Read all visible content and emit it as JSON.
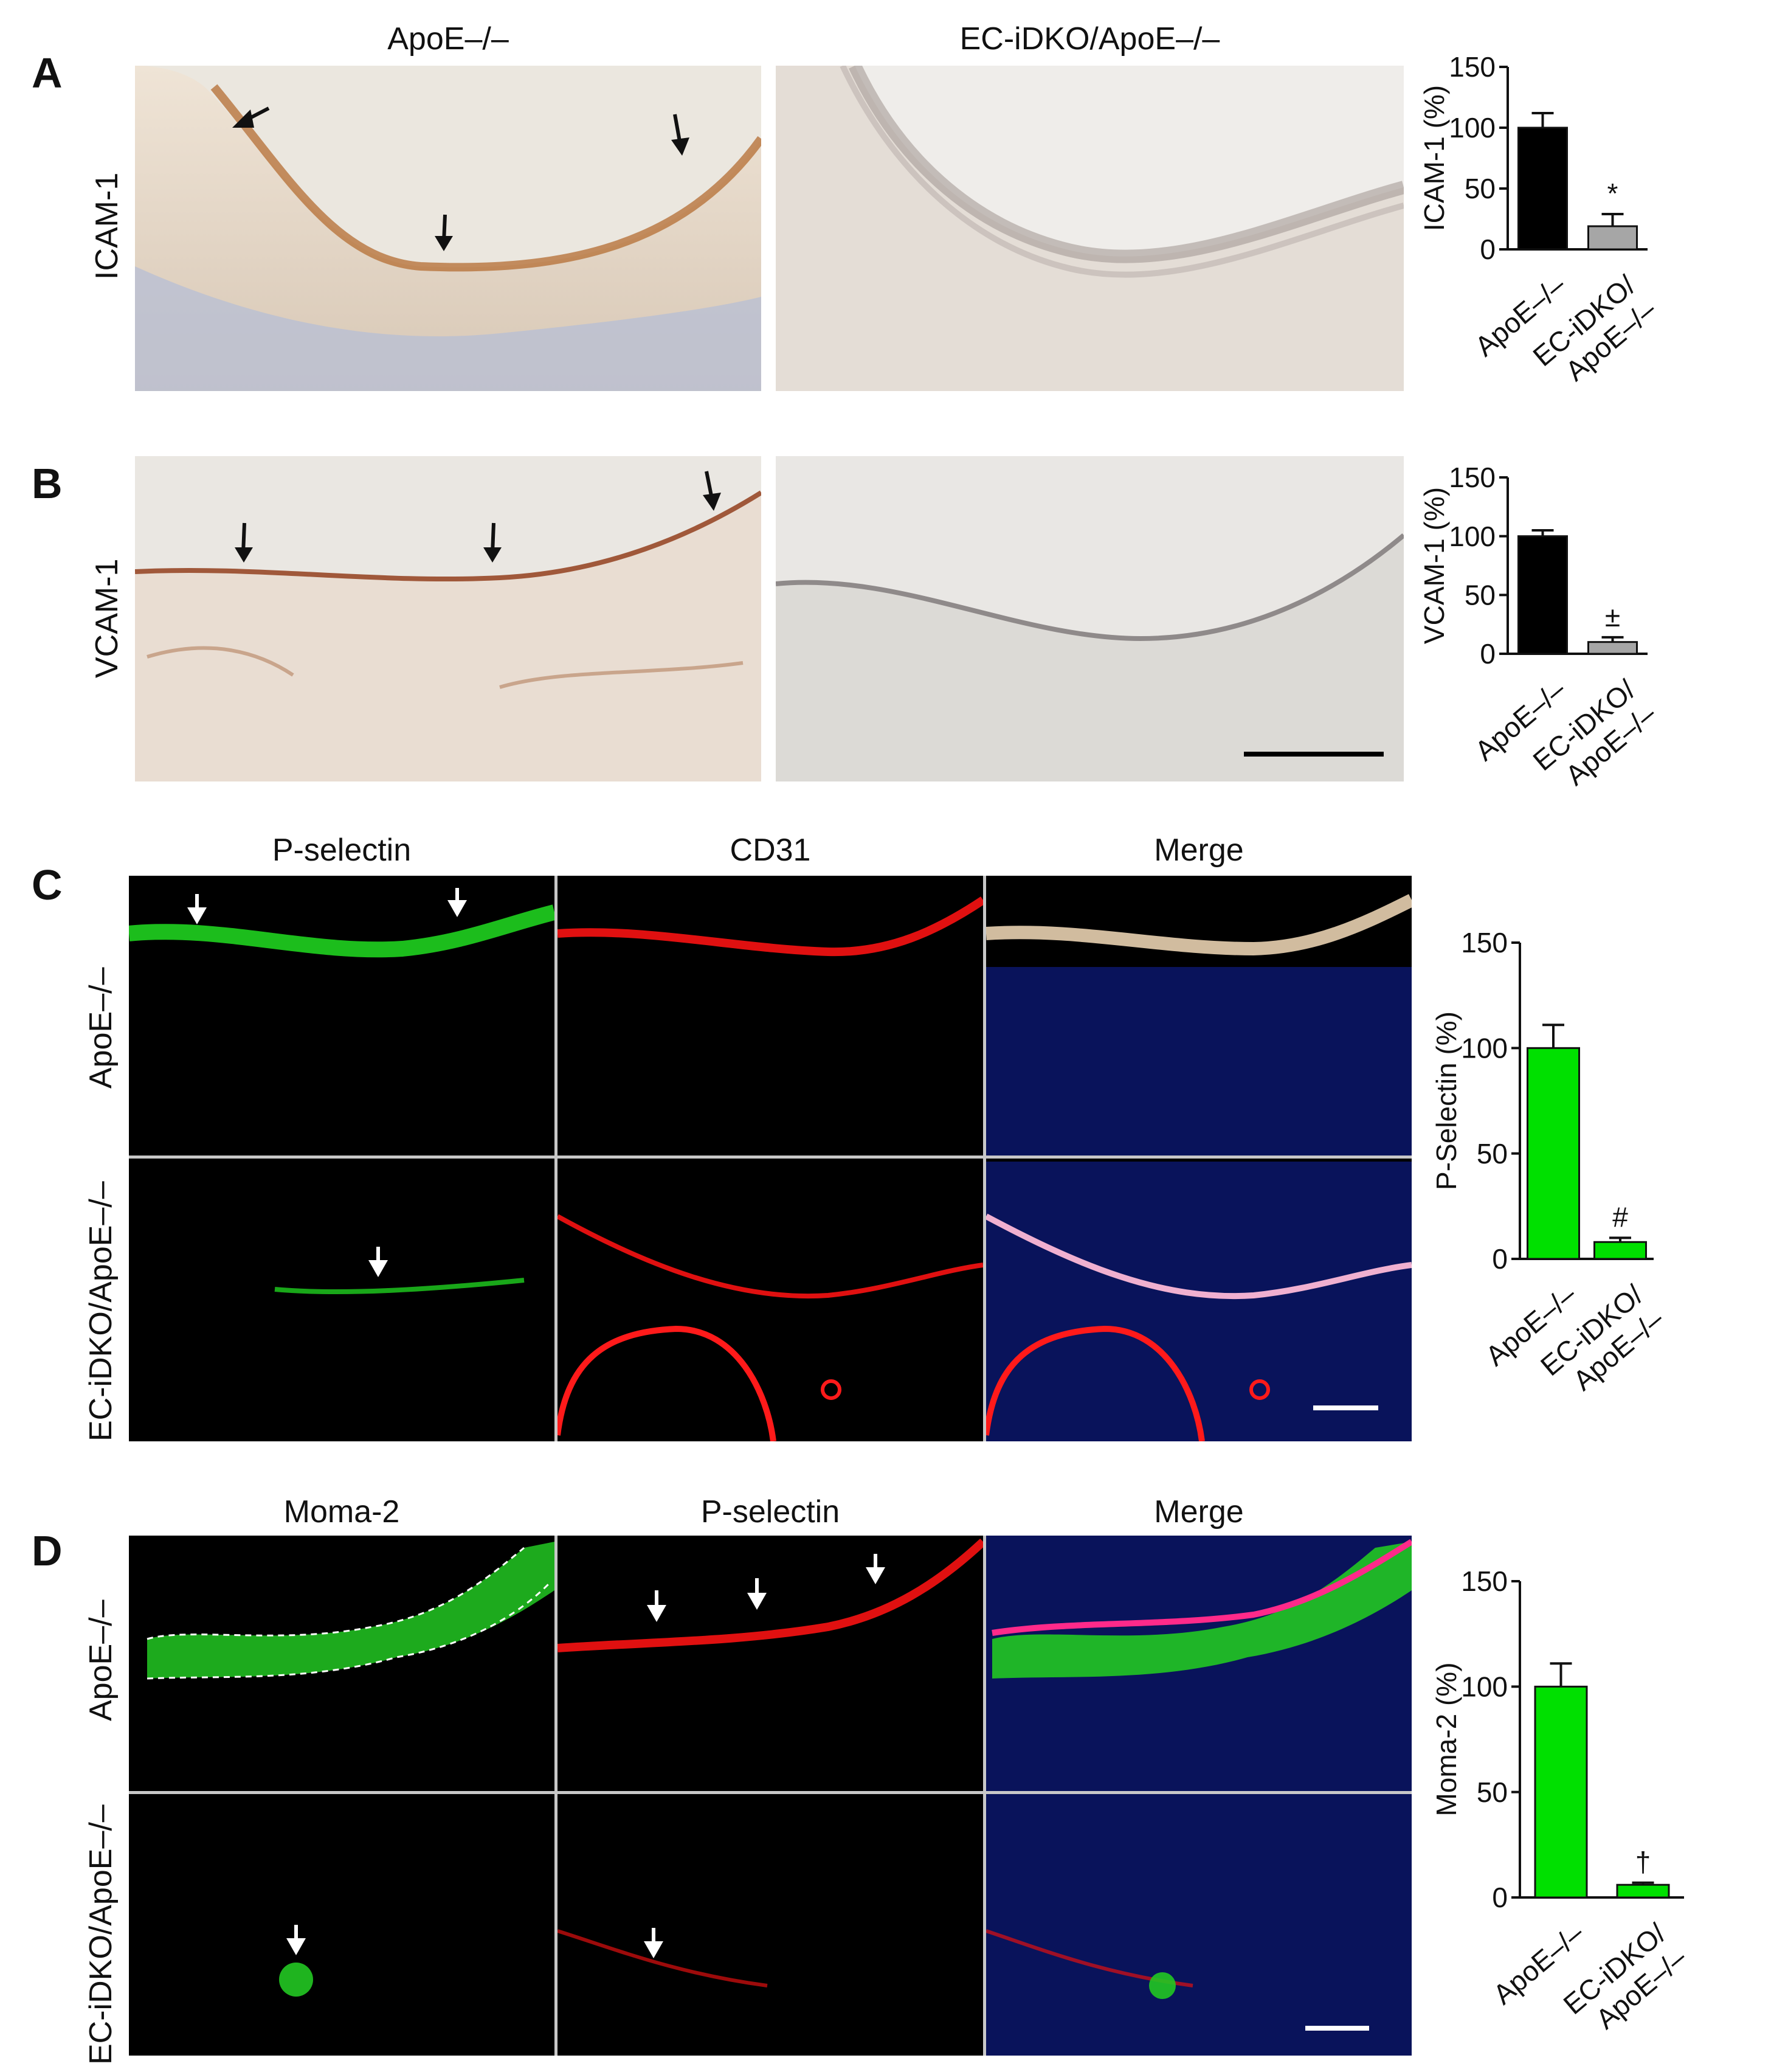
{
  "panels": {
    "A": {
      "letter": "A",
      "col_titles": [
        "ApoE–/–",
        "EC-iDKO/ApoE–/–"
      ],
      "row_label": "ICAM-1"
    },
    "B": {
      "letter": "B",
      "row_label": "VCAM-1"
    },
    "C": {
      "letter": "C",
      "col_titles": [
        "P-selectin",
        "CD31",
        "Merge"
      ],
      "row_labels": [
        "ApoE–/–",
        "EC-iDKO/ApoE–/–"
      ]
    },
    "D": {
      "letter": "D",
      "col_titles": [
        "Moma-2",
        "P-selectin",
        "Merge"
      ],
      "row_labels": [
        "ApoE–/–",
        "EC-iDKO/ApoE–/–"
      ]
    }
  },
  "chart_data": [
    {
      "type": "bar",
      "panel": "A",
      "categories": [
        "ApoE–/–",
        "EC-iDKO/ApoE–/–"
      ],
      "category_lines": [
        [
          "ApoE–/–"
        ],
        [
          "EC-iDKO/",
          "ApoE–/–"
        ]
      ],
      "values": [
        100,
        19
      ],
      "errors": [
        12,
        10
      ],
      "significance": [
        "",
        "*"
      ],
      "ylabel": "ICAM-1 (%)",
      "ylim": [
        0,
        150
      ],
      "yticks": [
        0,
        50,
        100,
        150
      ],
      "colors": [
        "#000000",
        "#a6a6a6"
      ]
    },
    {
      "type": "bar",
      "panel": "B",
      "categories": [
        "ApoE–/–",
        "EC-iDKO/ApoE–/–"
      ],
      "category_lines": [
        [
          "ApoE–/–"
        ],
        [
          "EC-iDKO/",
          "ApoE–/–"
        ]
      ],
      "values": [
        100,
        10
      ],
      "errors": [
        5,
        4
      ],
      "significance": [
        "",
        "±"
      ],
      "ylabel": "VCAM-1 (%)",
      "ylim": [
        0,
        150
      ],
      "yticks": [
        0,
        50,
        100,
        150
      ],
      "colors": [
        "#000000",
        "#a6a6a6"
      ]
    },
    {
      "type": "bar",
      "panel": "C",
      "categories": [
        "ApoE–/–",
        "EC-iDKO/ApoE–/–"
      ],
      "category_lines": [
        [
          "ApoE–/–"
        ],
        [
          "EC-iDKO/",
          "ApoE–/–"
        ]
      ],
      "values": [
        100,
        8
      ],
      "errors": [
        11,
        2
      ],
      "significance": [
        "",
        "#"
      ],
      "ylabel": "P-Selectin (%)",
      "ylim": [
        0,
        150
      ],
      "yticks": [
        0,
        50,
        100,
        150
      ],
      "colors": [
        "#00e000",
        "#00e000"
      ]
    },
    {
      "type": "bar",
      "panel": "D",
      "categories": [
        "ApoE–/–",
        "EC-iDKO/ApoE–/–"
      ],
      "category_lines": [
        [
          "ApoE–/–"
        ],
        [
          "EC-iDKO/",
          "ApoE–/–"
        ]
      ],
      "values": [
        100,
        6
      ],
      "errors": [
        11,
        1
      ],
      "significance": [
        "",
        "†"
      ],
      "ylabel": "Moma-2 (%)",
      "ylim": [
        0,
        150
      ],
      "yticks": [
        0,
        50,
        100,
        150
      ],
      "colors": [
        "#00e000",
        "#00e000"
      ]
    }
  ]
}
